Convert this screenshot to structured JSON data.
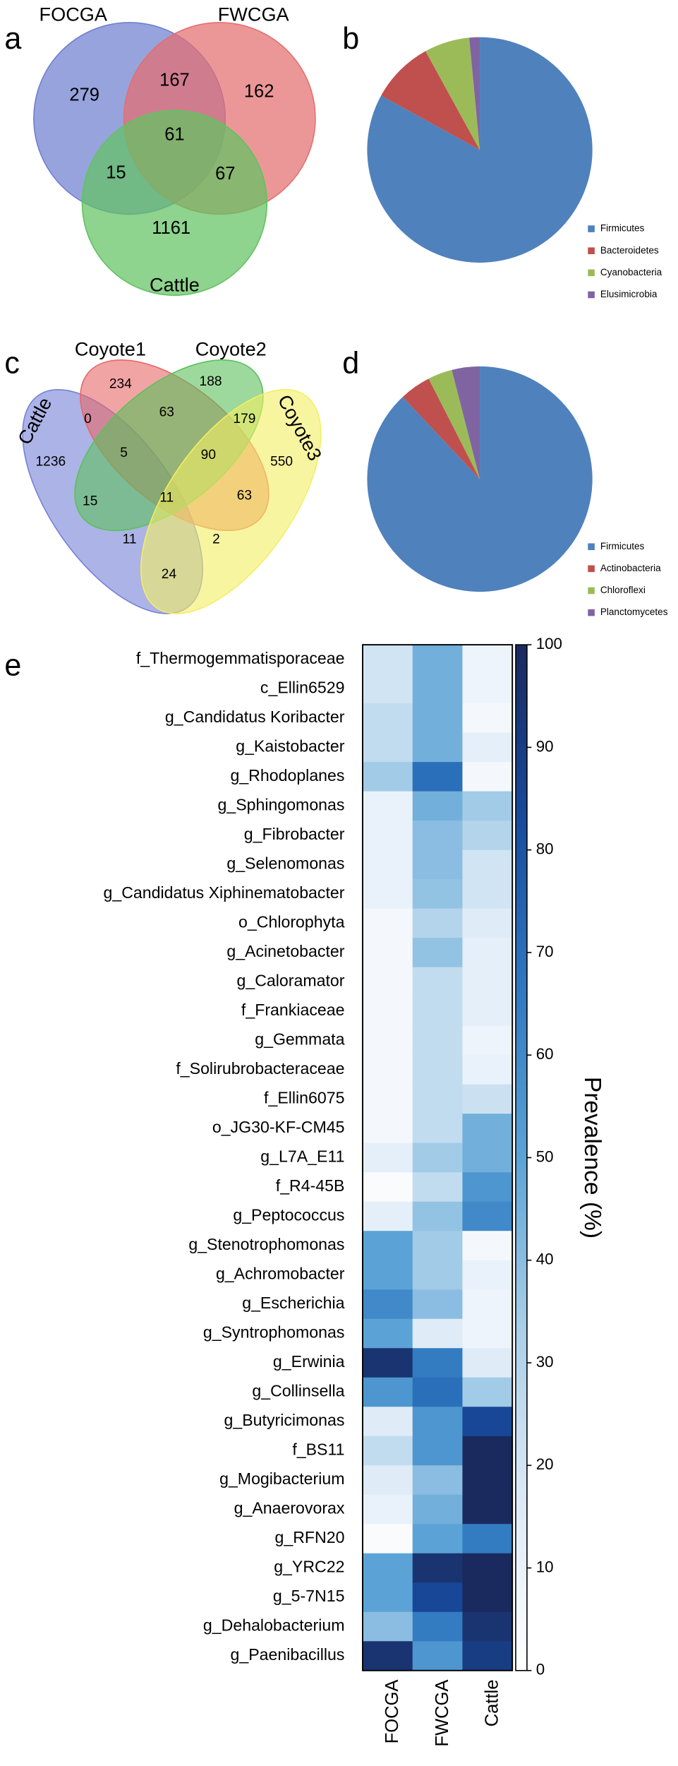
{
  "chart_data": [
    {
      "type": "venn",
      "panel": "a",
      "sets": [
        {
          "name": "FOCGA",
          "color": "#6f7fd0"
        },
        {
          "name": "FWCGA",
          "color": "#e46f6f"
        },
        {
          "name": "Cattle",
          "color": "#62c262"
        }
      ],
      "values": [
        279,
        162,
        1161,
        167,
        15,
        67,
        61
      ]
    },
    {
      "type": "pie",
      "panel": "b",
      "categories": [
        "Firmicutes",
        "Bacteroidetes",
        "Cyanobacteria",
        "Elusimicrobia"
      ],
      "values": [
        83,
        9,
        6.5,
        1.5
      ],
      "colors": [
        "#4f81bd",
        "#c0504d",
        "#9bbb59",
        "#8064a2"
      ],
      "legend": "lower right"
    },
    {
      "type": "venn",
      "panel": "c",
      "sets": [
        {
          "name": "Cattle",
          "color": "#7580d6"
        },
        {
          "name": "Coyote1",
          "color": "#e86767"
        },
        {
          "name": "Coyote2",
          "color": "#5cc05c"
        },
        {
          "name": "Coyote3",
          "color": "#f4ee62"
        }
      ],
      "values": [
        1236,
        234,
        188,
        550,
        0,
        63,
        179,
        5,
        90,
        15,
        11,
        63,
        11,
        2,
        24
      ]
    },
    {
      "type": "pie",
      "panel": "d",
      "categories": [
        "Firmicutes",
        "Actinobacteria",
        "Chloroflexi",
        "Planctomycetes"
      ],
      "values": [
        88,
        4.5,
        3.5,
        4
      ],
      "colors": [
        "#4f81bd",
        "#c0504d",
        "#9bbb59",
        "#8064a2"
      ],
      "legend": "lower right"
    },
    {
      "type": "heatmap",
      "panel": "e",
      "categories": [
        "f_Thermogemmatisporaceae",
        "c_Ellin6529",
        "g_Candidatus Koribacter",
        "g_Kaistobacter",
        "g_Rhodoplanes",
        "g_Sphingomonas",
        "g_Fibrobacter",
        "g_Selenomonas",
        "g_Candidatus Xiphinematobacter",
        "o_Chlorophyta",
        "g_Acinetobacter",
        "g_Caloramator",
        "f_Frankiaceae",
        "g_Gemmata",
        "f_Solirubrobacteraceae",
        "f_Ellin6075",
        "o_JG30-KF-CM45",
        "g_L7A_E11",
        "f_R4-45B",
        "g_Peptococcus",
        "g_Stenotrophomonas",
        "g_Achromobacter",
        "g_Escherichia",
        "g_Syntrophomonas",
        "g_Erwinia",
        "g_Collinsella",
        "g_Butyricimonas",
        "f_BS11",
        "g_Mogibacterium",
        "g_Anaerovorax",
        "g_RFN20",
        "g_YRC22",
        "g_5-7N15",
        "g_Dehalobacterium",
        "g_Paenibacillus"
      ],
      "columns": [
        "FOCGA",
        "FWCGA",
        "Cattle"
      ],
      "values": [
        [
          20,
          45,
          8
        ],
        [
          20,
          45,
          8
        ],
        [
          25,
          45,
          5
        ],
        [
          25,
          45,
          12
        ],
        [
          35,
          70,
          5
        ],
        [
          10,
          45,
          35
        ],
        [
          10,
          40,
          30
        ],
        [
          10,
          40,
          20
        ],
        [
          10,
          38,
          20
        ],
        [
          5,
          30,
          15
        ],
        [
          5,
          38,
          12
        ],
        [
          5,
          25,
          12
        ],
        [
          5,
          25,
          12
        ],
        [
          5,
          25,
          8
        ],
        [
          5,
          25,
          10
        ],
        [
          5,
          25,
          22
        ],
        [
          5,
          25,
          45
        ],
        [
          12,
          35,
          45
        ],
        [
          3,
          25,
          55
        ],
        [
          12,
          38,
          60
        ],
        [
          50,
          35,
          5
        ],
        [
          50,
          35,
          10
        ],
        [
          60,
          40,
          8
        ],
        [
          50,
          15,
          8
        ],
        [
          95,
          65,
          15
        ],
        [
          55,
          70,
          35
        ],
        [
          15,
          55,
          85
        ],
        [
          25,
          55,
          100
        ],
        [
          15,
          40,
          100
        ],
        [
          10,
          45,
          100
        ],
        [
          3,
          50,
          65
        ],
        [
          50,
          95,
          100
        ],
        [
          50,
          85,
          100
        ],
        [
          40,
          65,
          95
        ],
        [
          95,
          55,
          90
        ]
      ],
      "zlim": [
        0,
        100
      ],
      "zticks": [
        0,
        10,
        20,
        30,
        40,
        50,
        60,
        70,
        80,
        90,
        100
      ],
      "colorbar_label": "Prevalence (%)",
      "colormap": [
        "#ffffff",
        "#dbe9f6",
        "#a9cfe8",
        "#5ba3d6",
        "#2f78c0",
        "#174a9c",
        "#1a2a5e"
      ]
    }
  ]
}
